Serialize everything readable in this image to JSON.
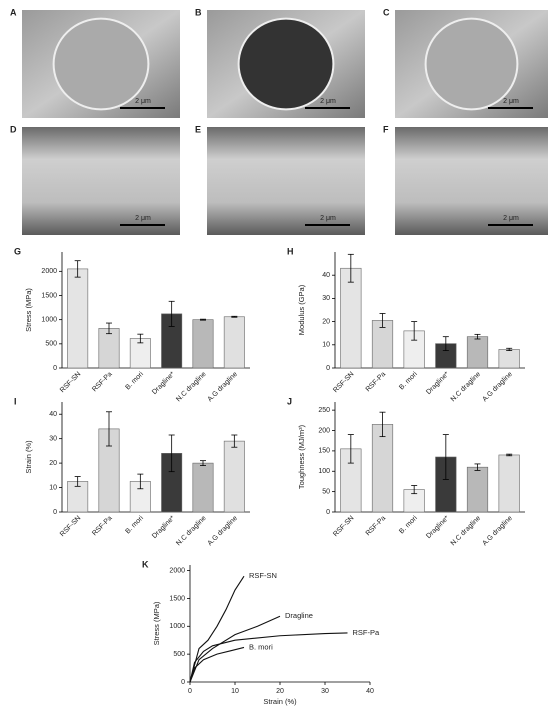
{
  "image_panels": [
    {
      "label": "A",
      "scale": "2 μm"
    },
    {
      "label": "B",
      "scale": "2 μm"
    },
    {
      "label": "C",
      "scale": "2 μm"
    },
    {
      "label": "D",
      "scale": "2 μm"
    },
    {
      "label": "E",
      "scale": "2 μm"
    },
    {
      "label": "F",
      "scale": "2 μm"
    }
  ],
  "chart_data": [
    {
      "type": "bar",
      "title": "G",
      "ylabel": "Stress (MPa)",
      "categories": [
        "RSF-SN",
        "RSF-Pa",
        "B. mori",
        "Dragline*",
        "N.C dragline",
        "A.G dragline"
      ],
      "values": [
        2050,
        820,
        610,
        1120,
        1000,
        1060
      ],
      "errors": [
        170,
        110,
        90,
        260,
        10,
        10
      ],
      "colors": [
        "#e4e4e4",
        "#d6d6d6",
        "#eeeeee",
        "#3a3a3a",
        "#b8b8b8",
        "#e0e0e0"
      ],
      "ylim": [
        0,
        2400
      ],
      "yticks": [
        0,
        500,
        1000,
        1500,
        2000
      ]
    },
    {
      "type": "bar",
      "title": "H",
      "ylabel": "Modulus (GPa)",
      "categories": [
        "RSF-SN",
        "RSF-Pa",
        "B. mori",
        "Dragline*",
        "N.C dragline",
        "A.G dragline"
      ],
      "values": [
        43,
        20.5,
        16,
        10.5,
        13.5,
        8
      ],
      "errors": [
        6,
        3,
        4,
        3,
        1,
        0.5
      ],
      "colors": [
        "#e4e4e4",
        "#d6d6d6",
        "#eeeeee",
        "#3a3a3a",
        "#b8b8b8",
        "#e0e0e0"
      ],
      "ylim": [
        0,
        50
      ],
      "yticks": [
        0,
        10,
        20,
        30,
        40
      ]
    },
    {
      "type": "bar",
      "title": "I",
      "ylabel": "Strain (%)",
      "categories": [
        "RSF-SN",
        "RSF-Pa",
        "B. mori",
        "Dragline*",
        "N.C dragline",
        "A.G dragline"
      ],
      "values": [
        12.5,
        34,
        12.5,
        24,
        20,
        29
      ],
      "errors": [
        2,
        7,
        3,
        7.5,
        1,
        2.5
      ],
      "colors": [
        "#e4e4e4",
        "#d6d6d6",
        "#eeeeee",
        "#3a3a3a",
        "#b8b8b8",
        "#e0e0e0"
      ],
      "ylim": [
        0,
        45
      ],
      "yticks": [
        0,
        10,
        20,
        30,
        40
      ]
    },
    {
      "type": "bar",
      "title": "J",
      "ylabel": "Toughness (MJ/m³)",
      "categories": [
        "RSF-SN",
        "RSF-Pa",
        "B. mori",
        "Dragline*",
        "N.C dragline",
        "A.G dragline"
      ],
      "values": [
        155,
        215,
        55,
        135,
        110,
        140
      ],
      "errors": [
        35,
        30,
        10,
        55,
        8,
        2
      ],
      "colors": [
        "#e4e4e4",
        "#d6d6d6",
        "#eeeeee",
        "#3a3a3a",
        "#b8b8b8",
        "#e0e0e0"
      ],
      "ylim": [
        0,
        270
      ],
      "yticks": [
        0,
        50,
        100,
        150,
        200,
        250
      ]
    },
    {
      "type": "line",
      "title": "K",
      "xlabel": "Strain (%)",
      "ylabel": "Stress (MPa)",
      "xlim": [
        0,
        40
      ],
      "xticks": [
        0,
        10,
        20,
        30,
        40
      ],
      "ylim": [
        0,
        2100
      ],
      "yticks": [
        0,
        500,
        1000,
        1500,
        2000
      ],
      "series": [
        {
          "name": "RSF-SN",
          "color": "#111111",
          "x": [
            0,
            1,
            2,
            4,
            6,
            8,
            10,
            12
          ],
          "values": [
            0,
            300,
            600,
            750,
            1000,
            1300,
            1650,
            1900
          ]
        },
        {
          "name": "Dragline",
          "color": "#111111",
          "x": [
            0,
            2,
            5,
            10,
            15,
            20
          ],
          "values": [
            0,
            400,
            600,
            850,
            1000,
            1180
          ]
        },
        {
          "name": "RSF-Pa",
          "color": "#111111",
          "x": [
            0,
            1,
            3,
            5,
            10,
            20,
            30,
            35
          ],
          "values": [
            0,
            350,
            550,
            650,
            750,
            830,
            870,
            880
          ]
        },
        {
          "name": "B. mori",
          "color": "#111111",
          "x": [
            0,
            1,
            3,
            6,
            9,
            12
          ],
          "values": [
            0,
            250,
            400,
            500,
            560,
            620
          ]
        }
      ]
    }
  ]
}
